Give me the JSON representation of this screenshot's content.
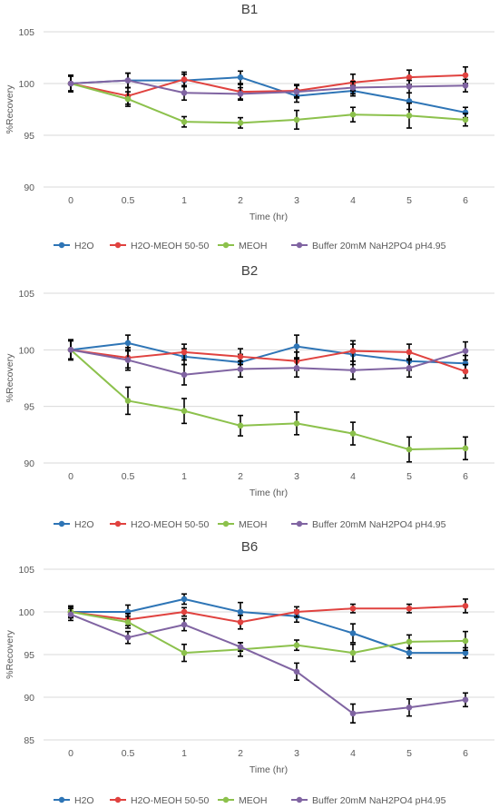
{
  "chart_data": [
    {
      "type": "line",
      "title": "B1",
      "xlabel": "Time (hr)",
      "ylabel": "%Recovery",
      "categories": [
        "0",
        "0.5",
        "1",
        "2",
        "3",
        "4",
        "5",
        "6"
      ],
      "ylim": [
        90,
        105
      ],
      "yticks": [
        90,
        95,
        100,
        105
      ],
      "grid": true,
      "legend": "bottom",
      "series": [
        {
          "name": "H2O",
          "color": "#2E75B6",
          "values": [
            100,
            100.3,
            100.3,
            100.6,
            98.8,
            99.3,
            98.3,
            97.2
          ],
          "errors": [
            0.7,
            0.7,
            0.6,
            0.6,
            0.6,
            0.5,
            0.8,
            0.5
          ]
        },
        {
          "name": "H2O-MEOH 50-50",
          "color": "#E0423F",
          "values": [
            100,
            98.8,
            100.4,
            99.2,
            99.3,
            100.1,
            100.6,
            100.8
          ],
          "errors": [
            0.8,
            0.8,
            0.7,
            0.7,
            0.6,
            0.8,
            0.7,
            0.8
          ]
        },
        {
          "name": "MEOH",
          "color": "#8CC14C",
          "values": [
            100,
            98.5,
            96.3,
            96.2,
            96.5,
            97.0,
            96.9,
            96.5
          ],
          "errors": [
            0.8,
            0.7,
            0.5,
            0.5,
            0.9,
            0.7,
            1.2,
            0.6
          ]
        },
        {
          "name": "Buffer 20mM NaH2PO4 pH4.95",
          "color": "#8064A2",
          "values": [
            100,
            100.3,
            99.1,
            99.0,
            99.2,
            99.6,
            99.7,
            99.8
          ],
          "errors": [
            0.8,
            0.7,
            0.7,
            0.6,
            0.6,
            0.6,
            0.6,
            0.6
          ]
        }
      ]
    },
    {
      "type": "line",
      "title": "B2",
      "xlabel": "Time (hr)",
      "ylabel": "%Recovery",
      "categories": [
        "0",
        "0.5",
        "1",
        "2",
        "3",
        "4",
        "5",
        "6"
      ],
      "ylim": [
        90,
        105
      ],
      "yticks": [
        90,
        95,
        100,
        105
      ],
      "grid": true,
      "legend": "bottom",
      "series": [
        {
          "name": "H2O",
          "color": "#2E75B6",
          "values": [
            100,
            100.6,
            99.4,
            98.9,
            100.3,
            99.6,
            99.0,
            98.8
          ],
          "errors": [
            0.8,
            0.7,
            0.7,
            0.7,
            1.0,
            0.9,
            0.8,
            0.7
          ]
        },
        {
          "name": "H2O-MEOH 50-50",
          "color": "#E0423F",
          "values": [
            100,
            99.3,
            99.8,
            99.4,
            99.0,
            99.9,
            99.8,
            98.1
          ],
          "errors": [
            0.9,
            0.9,
            0.7,
            0.7,
            0.8,
            0.9,
            0.7,
            0.6
          ]
        },
        {
          "name": "MEOH",
          "color": "#8CC14C",
          "values": [
            100,
            95.5,
            94.6,
            93.3,
            93.5,
            92.6,
            91.2,
            91.3
          ],
          "errors": [
            0.8,
            1.2,
            1.1,
            0.9,
            1.0,
            1.0,
            1.1,
            1.0
          ]
        },
        {
          "name": "Buffer 20mM NaH2PO4 pH4.95",
          "color": "#8064A2",
          "values": [
            100,
            99.1,
            97.8,
            98.3,
            98.4,
            98.2,
            98.4,
            99.9
          ],
          "errors": [
            0.8,
            0.9,
            0.9,
            0.7,
            0.8,
            0.8,
            0.8,
            0.8
          ]
        }
      ]
    },
    {
      "type": "line",
      "title": "B6",
      "xlabel": "Time (hr)",
      "ylabel": "%Recovery",
      "categories": [
        "0",
        "0.5",
        "1",
        "2",
        "3",
        "4",
        "5",
        "6"
      ],
      "ylim": [
        85,
        105
      ],
      "yticks": [
        85,
        90,
        95,
        100,
        105
      ],
      "grid": true,
      "legend": "bottom",
      "series": [
        {
          "name": "H2O",
          "color": "#2E75B6",
          "values": [
            100,
            100.0,
            101.5,
            100.0,
            99.5,
            97.5,
            95.2,
            95.2
          ],
          "errors": [
            0.6,
            0.8,
            0.6,
            1.1,
            0.7,
            1.1,
            0.6,
            0.6
          ]
        },
        {
          "name": "H2O-MEOH 50-50",
          "color": "#E0423F",
          "values": [
            100,
            99.1,
            100.0,
            98.8,
            100.0,
            100.4,
            100.4,
            100.7
          ],
          "errors": [
            0.7,
            0.7,
            0.5,
            0.8,
            0.6,
            0.5,
            0.5,
            0.8
          ]
        },
        {
          "name": "MEOH",
          "color": "#8CC14C",
          "values": [
            100,
            98.8,
            95.2,
            95.6,
            96.1,
            95.2,
            96.5,
            96.6
          ],
          "errors": [
            0.6,
            0.7,
            1.0,
            0.8,
            0.6,
            1.0,
            0.8,
            1.1
          ]
        },
        {
          "name": "Buffer 20mM NaH2PO4 pH4.95",
          "color": "#8064A2",
          "values": [
            99.7,
            97.0,
            98.5,
            95.9,
            93.0,
            88.1,
            88.8,
            89.7
          ],
          "errors": [
            0.7,
            0.7,
            0.7,
            0.5,
            1.0,
            1.1,
            1.0,
            0.8
          ]
        }
      ]
    }
  ]
}
